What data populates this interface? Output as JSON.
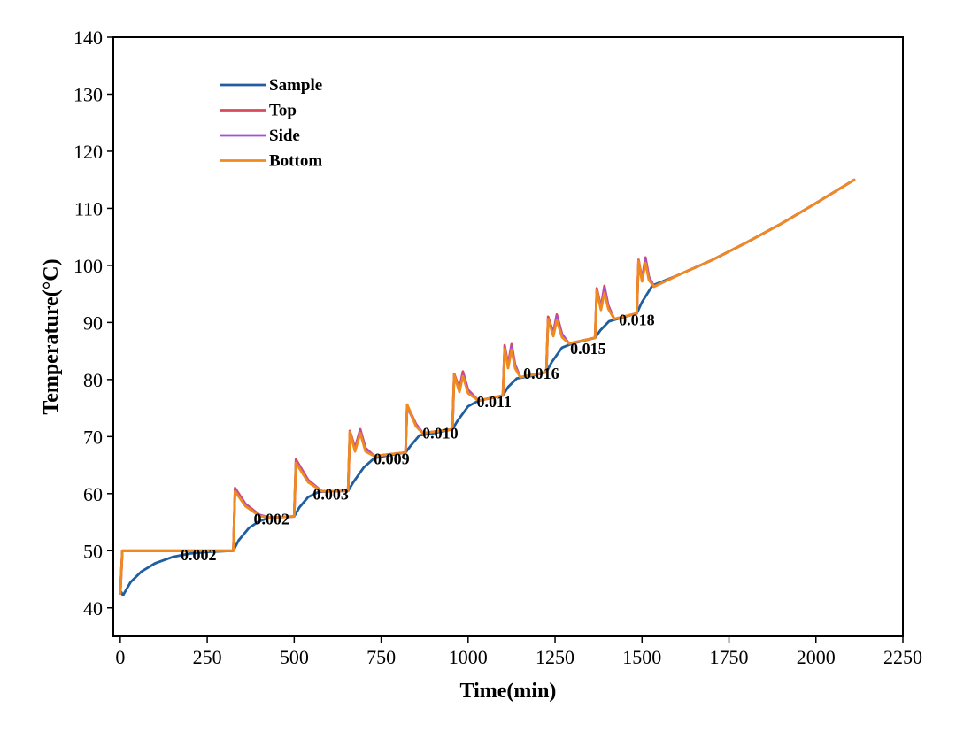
{
  "chart_data": {
    "type": "line",
    "xlabel": "Time(min)",
    "ylabel": "Temperature(°C)",
    "xlim": [
      -20,
      2250
    ],
    "ylim": [
      35,
      140
    ],
    "xticks": [
      0,
      250,
      500,
      750,
      1000,
      1250,
      1500,
      1750,
      2000,
      2250
    ],
    "yticks": [
      40,
      50,
      60,
      70,
      80,
      90,
      100,
      110,
      120,
      130,
      140
    ],
    "grid": false,
    "legend_position": "top-left",
    "legend": [
      "Sample",
      "Top",
      "Side",
      "Bottom"
    ],
    "series": [
      {
        "name": "Sample",
        "color": "#1f5fa0",
        "points": [
          [
            0,
            43
          ],
          [
            8,
            42.2
          ],
          [
            30,
            44.5
          ],
          [
            60,
            46.3
          ],
          [
            100,
            47.8
          ],
          [
            150,
            48.9
          ],
          [
            200,
            49.5
          ],
          [
            250,
            49.8
          ],
          [
            325,
            50
          ],
          [
            340,
            51.8
          ],
          [
            370,
            54
          ],
          [
            400,
            55.2
          ],
          [
            430,
            55.8
          ],
          [
            500,
            56
          ],
          [
            515,
            57.6
          ],
          [
            540,
            59.4
          ],
          [
            570,
            60.3
          ],
          [
            600,
            60.4
          ],
          [
            655,
            60.5
          ],
          [
            670,
            62
          ],
          [
            700,
            64.6
          ],
          [
            730,
            66.2
          ],
          [
            760,
            66.6
          ],
          [
            820,
            67.2
          ],
          [
            835,
            68.4
          ],
          [
            860,
            70.2
          ],
          [
            900,
            70.6
          ],
          [
            955,
            71.3
          ],
          [
            970,
            72.8
          ],
          [
            1000,
            75.3
          ],
          [
            1030,
            76.3
          ],
          [
            1100,
            77.2
          ],
          [
            1115,
            78.7
          ],
          [
            1140,
            80.2
          ],
          [
            1180,
            80.6
          ],
          [
            1225,
            81.3
          ],
          [
            1240,
            83
          ],
          [
            1270,
            85.6
          ],
          [
            1300,
            86.3
          ],
          [
            1365,
            87.3
          ],
          [
            1380,
            88.6
          ],
          [
            1405,
            90.2
          ],
          [
            1440,
            90.8
          ],
          [
            1485,
            91.6
          ],
          [
            1500,
            93.6
          ],
          [
            1530,
            96.5
          ],
          [
            1600,
            98.2
          ],
          [
            1700,
            100.9
          ],
          [
            1800,
            104
          ],
          [
            1900,
            107.3
          ],
          [
            2000,
            110.9
          ],
          [
            2110,
            115
          ]
        ]
      },
      {
        "name": "Top",
        "color": "#d84a5a",
        "points": [
          [
            0,
            42.5
          ],
          [
            6,
            50
          ],
          [
            325,
            50
          ],
          [
            330,
            61
          ],
          [
            360,
            58.2
          ],
          [
            400,
            56.3
          ],
          [
            430,
            55.8
          ],
          [
            500,
            56
          ],
          [
            505,
            66
          ],
          [
            540,
            62.4
          ],
          [
            580,
            60.4
          ],
          [
            655,
            60.5
          ],
          [
            660,
            71
          ],
          [
            675,
            68
          ],
          [
            690,
            71.3
          ],
          [
            705,
            68
          ],
          [
            730,
            66.6
          ],
          [
            820,
            67.2
          ],
          [
            825,
            75.5
          ],
          [
            850,
            72.2
          ],
          [
            870,
            70.6
          ],
          [
            955,
            71.3
          ],
          [
            960,
            81
          ],
          [
            975,
            78.4
          ],
          [
            985,
            81.4
          ],
          [
            1000,
            78.2
          ],
          [
            1030,
            76.3
          ],
          [
            1100,
            77.2
          ],
          [
            1105,
            86
          ],
          [
            1115,
            82.6
          ],
          [
            1125,
            86.2
          ],
          [
            1135,
            82.6
          ],
          [
            1150,
            80.4
          ],
          [
            1225,
            81.3
          ],
          [
            1230,
            91
          ],
          [
            1245,
            88.2
          ],
          [
            1255,
            91.4
          ],
          [
            1270,
            88
          ],
          [
            1290,
            86.3
          ],
          [
            1365,
            87.3
          ],
          [
            1370,
            96
          ],
          [
            1382,
            92.7
          ],
          [
            1392,
            96.4
          ],
          [
            1403,
            93
          ],
          [
            1420,
            90.6
          ],
          [
            1485,
            91.6
          ],
          [
            1490,
            101
          ],
          [
            1500,
            97.6
          ],
          [
            1510,
            101.4
          ],
          [
            1520,
            98
          ],
          [
            1535,
            96.3
          ],
          [
            1600,
            98.2
          ],
          [
            1700,
            100.9
          ],
          [
            1800,
            104
          ],
          [
            1900,
            107.3
          ],
          [
            2000,
            110.9
          ],
          [
            2110,
            115
          ]
        ]
      },
      {
        "name": "Side",
        "color": "#a64fd8",
        "points": [
          [
            0,
            42.5
          ],
          [
            6,
            50
          ],
          [
            325,
            50
          ],
          [
            330,
            60.6
          ],
          [
            360,
            58
          ],
          [
            400,
            56.2
          ],
          [
            430,
            55.8
          ],
          [
            500,
            56
          ],
          [
            505,
            65.6
          ],
          [
            540,
            62.2
          ],
          [
            580,
            60.4
          ],
          [
            655,
            60.5
          ],
          [
            660,
            70.6
          ],
          [
            675,
            67.8
          ],
          [
            690,
            71
          ],
          [
            705,
            67.8
          ],
          [
            730,
            66.6
          ],
          [
            820,
            67.2
          ],
          [
            825,
            75.2
          ],
          [
            850,
            72
          ],
          [
            870,
            70.6
          ],
          [
            955,
            71.3
          ],
          [
            960,
            80.6
          ],
          [
            975,
            78.2
          ],
          [
            985,
            81
          ],
          [
            1000,
            78
          ],
          [
            1030,
            76.3
          ],
          [
            1100,
            77.2
          ],
          [
            1105,
            85.6
          ],
          [
            1115,
            82.4
          ],
          [
            1125,
            85.8
          ],
          [
            1135,
            82.4
          ],
          [
            1150,
            80.4
          ],
          [
            1225,
            81.3
          ],
          [
            1230,
            90.6
          ],
          [
            1245,
            88
          ],
          [
            1255,
            91
          ],
          [
            1270,
            87.8
          ],
          [
            1290,
            86.3
          ],
          [
            1365,
            87.3
          ],
          [
            1370,
            95.6
          ],
          [
            1382,
            92.5
          ],
          [
            1392,
            96
          ],
          [
            1403,
            92.8
          ],
          [
            1420,
            90.6
          ],
          [
            1485,
            91.6
          ],
          [
            1490,
            100.6
          ],
          [
            1500,
            97.4
          ],
          [
            1510,
            101
          ],
          [
            1520,
            97.8
          ],
          [
            1535,
            96.3
          ],
          [
            1600,
            98.2
          ],
          [
            1700,
            100.9
          ],
          [
            1800,
            104
          ],
          [
            1900,
            107.3
          ],
          [
            2000,
            110.9
          ],
          [
            2110,
            115
          ]
        ]
      },
      {
        "name": "Bottom",
        "color": "#f08a1c",
        "points": [
          [
            0,
            42.5
          ],
          [
            6,
            50
          ],
          [
            325,
            50
          ],
          [
            330,
            60.4
          ],
          [
            360,
            57.8
          ],
          [
            400,
            56.1
          ],
          [
            430,
            55.8
          ],
          [
            500,
            56
          ],
          [
            505,
            65.4
          ],
          [
            540,
            62
          ],
          [
            580,
            60.4
          ],
          [
            655,
            60.5
          ],
          [
            660,
            70.8
          ],
          [
            675,
            67.4
          ],
          [
            690,
            70.6
          ],
          [
            705,
            67.4
          ],
          [
            730,
            66.6
          ],
          [
            820,
            67.2
          ],
          [
            825,
            75.6
          ],
          [
            850,
            71.8
          ],
          [
            870,
            70.6
          ],
          [
            955,
            71.3
          ],
          [
            960,
            80.8
          ],
          [
            975,
            77.8
          ],
          [
            985,
            80.6
          ],
          [
            1000,
            77.6
          ],
          [
            1030,
            76.3
          ],
          [
            1100,
            77.2
          ],
          [
            1105,
            85.4
          ],
          [
            1115,
            82
          ],
          [
            1125,
            85.2
          ],
          [
            1135,
            82
          ],
          [
            1150,
            80.4
          ],
          [
            1225,
            81.3
          ],
          [
            1230,
            90.6
          ],
          [
            1245,
            87.6
          ],
          [
            1255,
            90.4
          ],
          [
            1270,
            87.4
          ],
          [
            1290,
            86.3
          ],
          [
            1365,
            87.3
          ],
          [
            1370,
            95.6
          ],
          [
            1382,
            92.2
          ],
          [
            1392,
            95.2
          ],
          [
            1403,
            92.4
          ],
          [
            1420,
            90.6
          ],
          [
            1485,
            91.6
          ],
          [
            1490,
            100.8
          ],
          [
            1500,
            97.2
          ],
          [
            1510,
            100.4
          ],
          [
            1520,
            97.4
          ],
          [
            1535,
            96.3
          ],
          [
            1600,
            98.2
          ],
          [
            1700,
            100.9
          ],
          [
            1800,
            104
          ],
          [
            1900,
            107.3
          ],
          [
            2000,
            110.9
          ],
          [
            2110,
            115
          ]
        ]
      }
    ],
    "annotations": [
      {
        "text": "0.002",
        "x": 225,
        "y": 48.3
      },
      {
        "text": "0.002",
        "x": 435,
        "y": 54.6
      },
      {
        "text": "0.003",
        "x": 605,
        "y": 59
      },
      {
        "text": "0.009",
        "x": 780,
        "y": 65.2
      },
      {
        "text": "0.010",
        "x": 920,
        "y": 69.7
      },
      {
        "text": "0.011",
        "x": 1075,
        "y": 75.2
      },
      {
        "text": "0.016",
        "x": 1210,
        "y": 80.1
      },
      {
        "text": "0.015",
        "x": 1345,
        "y": 84.5
      },
      {
        "text": "0.018",
        "x": 1485,
        "y": 89.5
      }
    ]
  }
}
